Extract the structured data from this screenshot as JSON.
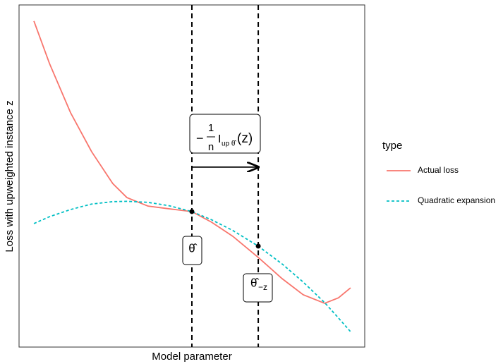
{
  "chart_data": {
    "type": "line",
    "xlabel": "Model parameter",
    "ylabel": "Loss with upweighted instance z",
    "legend_title": "type",
    "x": [
      0.043,
      0.088,
      0.149,
      0.21,
      0.271,
      0.312,
      0.373,
      0.435,
      0.5,
      0.557,
      0.618,
      0.692,
      0.761,
      0.822,
      0.884,
      0.924,
      0.959
    ],
    "series": [
      {
        "name": "Actual loss",
        "color": "#F8766D",
        "dash": false,
        "values": [
          0.953,
          0.829,
          0.685,
          0.571,
          0.478,
          0.437,
          0.412,
          0.404,
          0.396,
          0.365,
          0.324,
          0.262,
          0.2,
          0.153,
          0.128,
          0.144,
          0.173
        ]
      },
      {
        "name": "Quadratic expansion",
        "color": "#00BFC4",
        "dash": true,
        "values": [
          0.361,
          0.381,
          0.402,
          0.418,
          0.425,
          0.426,
          0.423,
          0.413,
          0.396,
          0.372,
          0.341,
          0.295,
          0.243,
          0.19,
          0.13,
          0.085,
          0.045
        ]
      }
    ],
    "xlim": [
      0,
      1
    ],
    "ylim": [
      0,
      1
    ],
    "vlines": [
      0.5,
      0.692
    ],
    "points": [
      {
        "x": 0.5,
        "y": 0.396
      },
      {
        "x": 0.692,
        "y": 0.295
      }
    ],
    "arrow": {
      "x": [
        0.5,
        0.692
      ],
      "y": 0.526
    },
    "annotations": [
      {
        "text": "θ̂"
      },
      {
        "text": "θ̂",
        "subscript": "−z"
      },
      {
        "minus": "−",
        "numerator": "1",
        "denominator": "n",
        "symbol": "I",
        "subscript": "up θ̂",
        "argument": "(z)"
      }
    ]
  }
}
